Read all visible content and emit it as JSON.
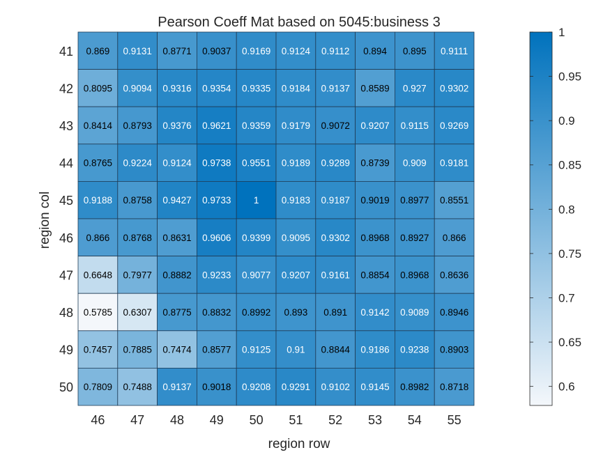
{
  "chart_data": {
    "type": "heatmap",
    "title": "Pearson Coeff Mat based on 5045:business 3",
    "xlabel": "region row",
    "ylabel": "region col",
    "x": [
      "46",
      "47",
      "48",
      "49",
      "50",
      "51",
      "52",
      "53",
      "54",
      "55"
    ],
    "y": [
      "41",
      "42",
      "43",
      "44",
      "45",
      "46",
      "47",
      "48",
      "49",
      "50"
    ],
    "values": [
      [
        0.869,
        0.9131,
        0.8771,
        0.9037,
        0.9169,
        0.9124,
        0.9112,
        0.894,
        0.895,
        0.9111
      ],
      [
        0.8095,
        0.9094,
        0.9316,
        0.9354,
        0.9335,
        0.9184,
        0.9137,
        0.8589,
        0.927,
        0.9302
      ],
      [
        0.8414,
        0.8793,
        0.9376,
        0.9621,
        0.9359,
        0.9179,
        0.9072,
        0.9207,
        0.9115,
        0.9269
      ],
      [
        0.8765,
        0.9224,
        0.9124,
        0.9738,
        0.9551,
        0.9189,
        0.9289,
        0.8739,
        0.909,
        0.9181
      ],
      [
        0.9188,
        0.8758,
        0.9427,
        0.9733,
        1,
        0.9183,
        0.9187,
        0.9019,
        0.8977,
        0.8551
      ],
      [
        0.866,
        0.8768,
        0.8631,
        0.9606,
        0.9399,
        0.9095,
        0.9302,
        0.8968,
        0.8927,
        0.866
      ],
      [
        0.6648,
        0.7977,
        0.8882,
        0.9233,
        0.9077,
        0.9207,
        0.9161,
        0.8854,
        0.8968,
        0.8636
      ],
      [
        0.5785,
        0.6307,
        0.8775,
        0.8832,
        0.8992,
        0.893,
        0.891,
        0.9142,
        0.9089,
        0.8946
      ],
      [
        0.7457,
        0.7885,
        0.7474,
        0.8577,
        0.9125,
        0.91,
        0.8844,
        0.9186,
        0.9238,
        0.8903
      ],
      [
        0.7809,
        0.7488,
        0.9137,
        0.9018,
        0.9208,
        0.9291,
        0.9102,
        0.9145,
        0.8982,
        0.8718
      ]
    ],
    "colorbar": {
      "range": [
        0.5785,
        1
      ],
      "ticks": [
        "0.6",
        "0.65",
        "0.7",
        "0.75",
        "0.8",
        "0.85",
        "0.9",
        "0.95",
        "1"
      ],
      "colormap_low": "#f4f7fb",
      "colormap_high": "#0072bd"
    },
    "label_color_light": "#ffffff",
    "label_color_dark": "#000000",
    "grid": true
  }
}
